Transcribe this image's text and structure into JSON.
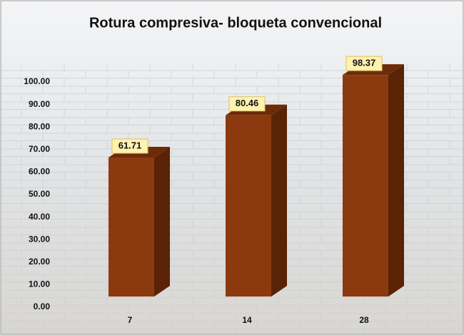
{
  "chart_data": {
    "type": "bar3d",
    "title": "Rotura compresiva- bloqueta convencional",
    "categories": [
      "7",
      "14",
      "28"
    ],
    "values": [
      61.71,
      80.46,
      98.37
    ],
    "color": "#8b3a10",
    "ylim": [
      0,
      100
    ],
    "yticks": [
      {
        "value": 0,
        "label": "0.00"
      },
      {
        "value": 10,
        "label": "10.00"
      },
      {
        "value": 20,
        "label": "20.00"
      },
      {
        "value": 30,
        "label": "30.00"
      },
      {
        "value": 40,
        "label": "40.00"
      },
      {
        "value": 50,
        "label": "50.00"
      },
      {
        "value": 60,
        "label": "60.00"
      },
      {
        "value": 70,
        "label": "70.00"
      },
      {
        "value": 80,
        "label": "80.00"
      },
      {
        "value": 90,
        "label": "90.00"
      },
      {
        "value": 100,
        "label": "100.00"
      }
    ],
    "grid": false
  }
}
